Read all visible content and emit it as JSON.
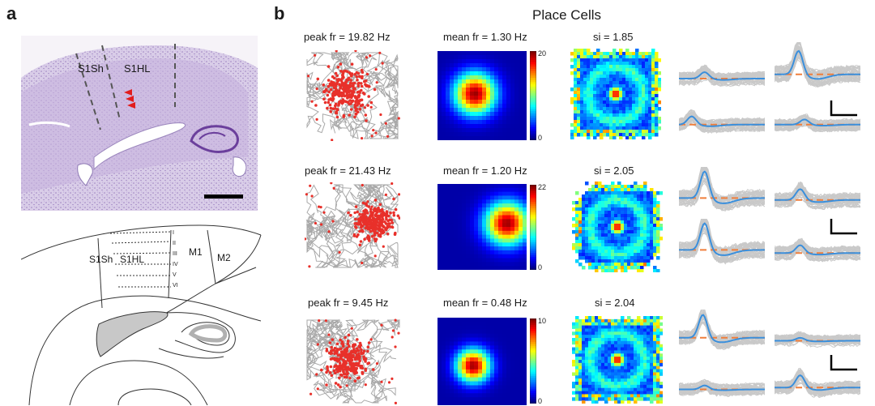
{
  "panel_a": {
    "letter": "a",
    "histology_labels": [
      "S1Sh",
      "S1HL"
    ],
    "schematic": {
      "regions": [
        "S1Sh",
        "S1HL",
        "M1",
        "M2"
      ],
      "layers": [
        "I",
        "II",
        "III",
        "IV",
        "V",
        "VI"
      ]
    }
  },
  "panel_b": {
    "letter": "b",
    "title": "Place Cells",
    "cells": [
      {
        "peak": "peak fr = 19.82 Hz",
        "mean": "mean fr = 1.30 Hz",
        "si": "si = 1.85",
        "cb_max": "20",
        "cb_min": "0"
      },
      {
        "peak": "peak fr = 21.43 Hz",
        "mean": "mean fr = 1.20 Hz",
        "si": "si = 2.05",
        "cb_max": "22",
        "cb_min": "0"
      },
      {
        "peak": "peak fr = 9.45 Hz",
        "mean": "mean fr = 0.48 Hz",
        "si": "si = 2.04",
        "cb_max": "10",
        "cb_min": "0"
      }
    ]
  },
  "colors": {
    "spike_red": "#e8302a",
    "trajectory_gray": "#a9a9a9",
    "waveform_blue": "#3a8fdc",
    "baseline_orange": "#f07f3c",
    "histology_purple": "#b59cd0"
  }
}
